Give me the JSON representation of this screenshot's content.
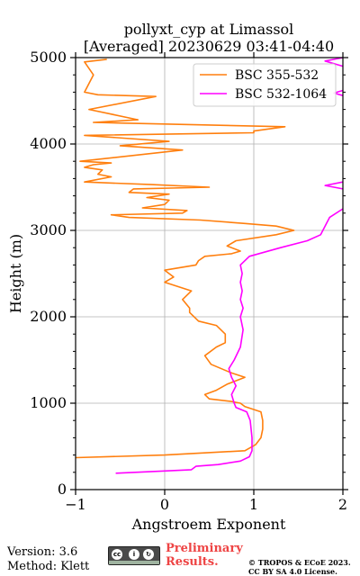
{
  "chart_data": {
    "type": "line",
    "title_line1": "pollyxt_cyp at Limassol",
    "title_line2": "[Averaged] 20230629 03:41-04:40",
    "xlabel": "Angstroem Exponent",
    "ylabel": "Height (m)",
    "xlim": [
      -1,
      2
    ],
    "ylim": [
      0,
      5000
    ],
    "xticks": [
      -1,
      0,
      1,
      2
    ],
    "xtick_labels": [
      "−1",
      "0",
      "1",
      "2"
    ],
    "yticks": [
      0,
      1000,
      2000,
      3000,
      4000,
      5000
    ],
    "ytick_labels": [
      "0",
      "1000",
      "2000",
      "3000",
      "4000",
      "5000"
    ],
    "grid": true,
    "legend_position": "top-right",
    "series": [
      {
        "name": "BSC 355-532",
        "color": "#ff7f0e",
        "points": [
          [
            -1,
            370
          ],
          [
            0,
            400
          ],
          [
            0.9,
            450
          ],
          [
            1.02,
            520
          ],
          [
            1.08,
            600
          ],
          [
            1.1,
            700
          ],
          [
            1.1,
            800
          ],
          [
            1.08,
            900
          ],
          [
            0.9,
            960
          ],
          [
            0.85,
            1000
          ],
          [
            0.75,
            1020
          ],
          [
            0.5,
            1050
          ],
          [
            0.45,
            1100
          ],
          [
            0.58,
            1150
          ],
          [
            0.7,
            1220
          ],
          [
            0.9,
            1300
          ],
          [
            0.75,
            1350
          ],
          [
            0.52,
            1450
          ],
          [
            0.45,
            1550
          ],
          [
            0.58,
            1650
          ],
          [
            0.68,
            1700
          ],
          [
            0.68,
            1800
          ],
          [
            0.58,
            1900
          ],
          [
            0.38,
            1950
          ],
          [
            0.28,
            2050
          ],
          [
            0.28,
            2100
          ],
          [
            0.2,
            2200
          ],
          [
            0.3,
            2300
          ],
          [
            0.0,
            2400
          ],
          [
            0.1,
            2460
          ],
          [
            0.05,
            2500
          ],
          [
            0.0,
            2540
          ],
          [
            0.35,
            2600
          ],
          [
            0.38,
            2650
          ],
          [
            0.45,
            2700
          ],
          [
            0.75,
            2730
          ],
          [
            0.85,
            2760
          ],
          [
            0.7,
            2820
          ],
          [
            0.8,
            2880
          ],
          [
            1.25,
            2950
          ],
          [
            1.45,
            3000
          ],
          [
            1.25,
            3050
          ],
          [
            0.9,
            3080
          ],
          [
            0.4,
            3120
          ],
          [
            -0.4,
            3150
          ],
          [
            -0.6,
            3180
          ],
          [
            0.2,
            3200
          ],
          [
            0.25,
            3230
          ],
          [
            -0.25,
            3260
          ],
          [
            0.0,
            3300
          ],
          [
            0.05,
            3350
          ],
          [
            -0.2,
            3380
          ],
          [
            0.05,
            3420
          ],
          [
            -0.4,
            3440
          ],
          [
            -0.35,
            3480
          ],
          [
            0.5,
            3500
          ],
          [
            -0.15,
            3530
          ],
          [
            -0.9,
            3560
          ],
          [
            -0.6,
            3620
          ],
          [
            -0.75,
            3650
          ],
          [
            -0.7,
            3700
          ],
          [
            -0.9,
            3730
          ],
          [
            -0.8,
            3760
          ],
          [
            -0.6,
            3780
          ],
          [
            -0.95,
            3800
          ],
          [
            0.2,
            3930
          ],
          [
            -0.5,
            3980
          ],
          [
            0.05,
            4030
          ],
          [
            -0.9,
            4100
          ],
          [
            1.0,
            4130
          ],
          [
            1.0,
            4150
          ],
          [
            1.35,
            4200
          ],
          [
            -0.8,
            4250
          ],
          [
            -0.3,
            4280
          ],
          [
            -0.85,
            4400
          ],
          [
            -0.1,
            4550
          ],
          [
            -0.75,
            4570
          ],
          [
            -0.9,
            4600
          ],
          [
            -0.8,
            4800
          ],
          [
            -0.9,
            4950
          ],
          [
            -0.65,
            4980
          ]
        ]
      },
      {
        "name": "BSC 532-1064",
        "color": "#ff00ff",
        "points": [
          [
            -0.55,
            190
          ],
          [
            0.3,
            230
          ],
          [
            0.35,
            270
          ],
          [
            0.6,
            290
          ],
          [
            0.85,
            330
          ],
          [
            0.95,
            380
          ],
          [
            0.98,
            450
          ],
          [
            0.98,
            600
          ],
          [
            0.96,
            800
          ],
          [
            0.92,
            900
          ],
          [
            0.8,
            950
          ],
          [
            0.78,
            1000
          ],
          [
            0.75,
            1100
          ],
          [
            0.8,
            1200
          ],
          [
            0.75,
            1300
          ],
          [
            0.72,
            1400
          ],
          [
            0.78,
            1500
          ],
          [
            0.85,
            1650
          ],
          [
            0.88,
            1850
          ],
          [
            0.85,
            2000
          ],
          [
            0.88,
            2100
          ],
          [
            0.85,
            2200
          ],
          [
            0.87,
            2300
          ],
          [
            0.85,
            2400
          ],
          [
            0.87,
            2500
          ],
          [
            0.85,
            2600
          ],
          [
            0.95,
            2700
          ],
          [
            1.3,
            2800
          ],
          [
            1.6,
            2880
          ],
          [
            1.75,
            2950
          ],
          [
            1.8,
            3050
          ],
          [
            1.85,
            3150
          ],
          [
            2.0,
            3250
          ],
          [
            2.0,
            3250
          ]
        ]
      },
      {
        "name": "",
        "color": "#ff00ff",
        "points": [
          [
            2.0,
            3480
          ],
          [
            1.8,
            3520
          ],
          [
            2.0,
            3560
          ]
        ]
      },
      {
        "name": "",
        "color": "#ff00ff",
        "points": [
          [
            2.0,
            4560
          ],
          [
            1.9,
            4590
          ],
          [
            2.0,
            4620
          ]
        ]
      },
      {
        "name": "",
        "color": "#ff00ff",
        "points": [
          [
            2.0,
            4900
          ],
          [
            1.8,
            4960
          ],
          [
            2.0,
            5000
          ]
        ]
      }
    ]
  },
  "footer": {
    "version": "Version: 3.6",
    "method": "Method: Klett",
    "preliminary_line1": "Preliminary",
    "preliminary_line2": "Results.",
    "copyright_line1": "© TROPOS & ECoE 2023.",
    "copyright_line2": "CC BY SA 4.0 License.",
    "license_badge": {
      "icons": [
        "cc",
        "by",
        "sa"
      ],
      "glyphs": [
        "cc",
        "i",
        "↻"
      ],
      "labels": [
        "BY",
        "SA"
      ]
    }
  }
}
